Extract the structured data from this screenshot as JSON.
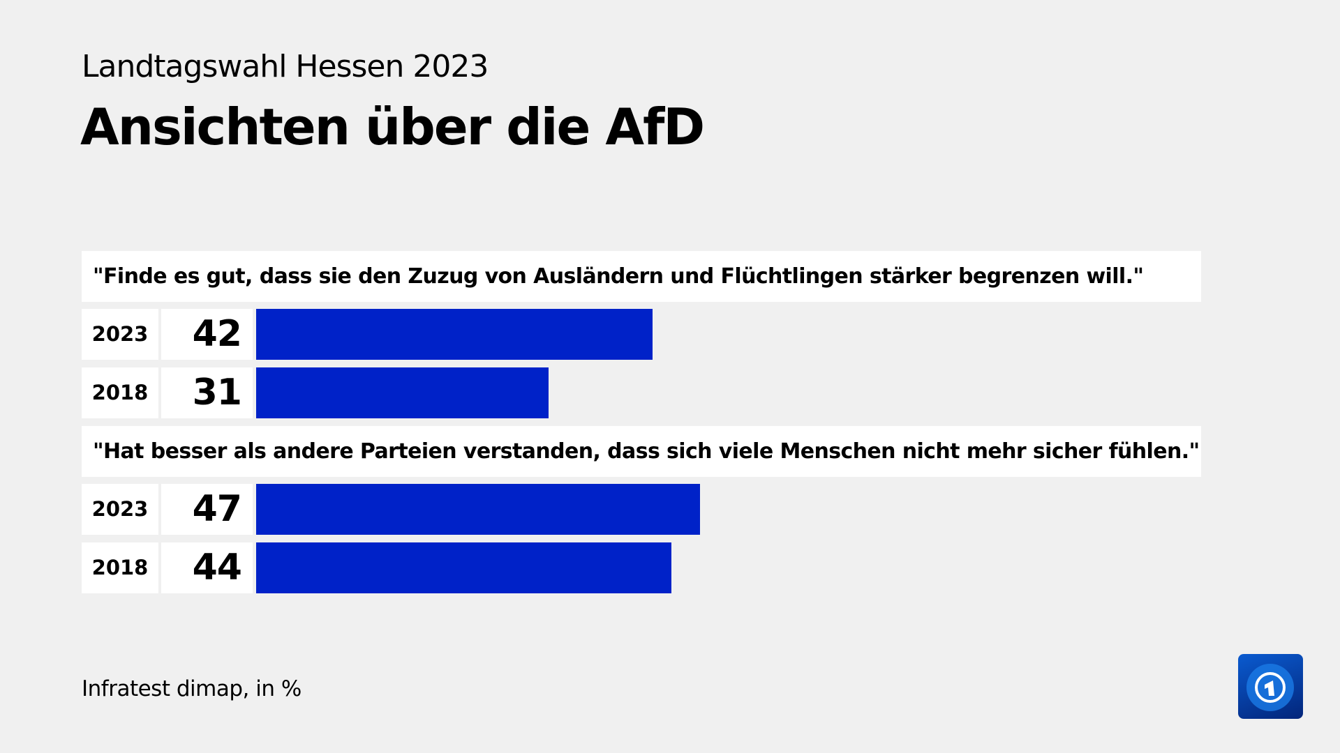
{
  "header": {
    "subtitle": "Landtagswahl Hessen 2023",
    "title": "Ansichten über die AfD"
  },
  "footer": {
    "source": "Infratest dimap, in %"
  },
  "logo": {
    "name": "tagesschau-logo",
    "text": "1"
  },
  "chart_data": {
    "type": "bar",
    "orientation": "horizontal",
    "bar_color": "#0022c8",
    "xlim": [
      0,
      100
    ],
    "groups": [
      {
        "label": "\"Finde es gut, dass sie den Zuzug von Ausländern und Flüchtlingen stärker begrenzen will.\"",
        "categories": [
          "2023",
          "2018"
        ],
        "values": [
          42,
          31
        ]
      },
      {
        "label": "\"Hat besser als andere Parteien verstanden, dass sich viele Menschen nicht mehr sicher fühlen.\"",
        "categories": [
          "2023",
          "2018"
        ],
        "values": [
          47,
          44
        ]
      }
    ]
  }
}
